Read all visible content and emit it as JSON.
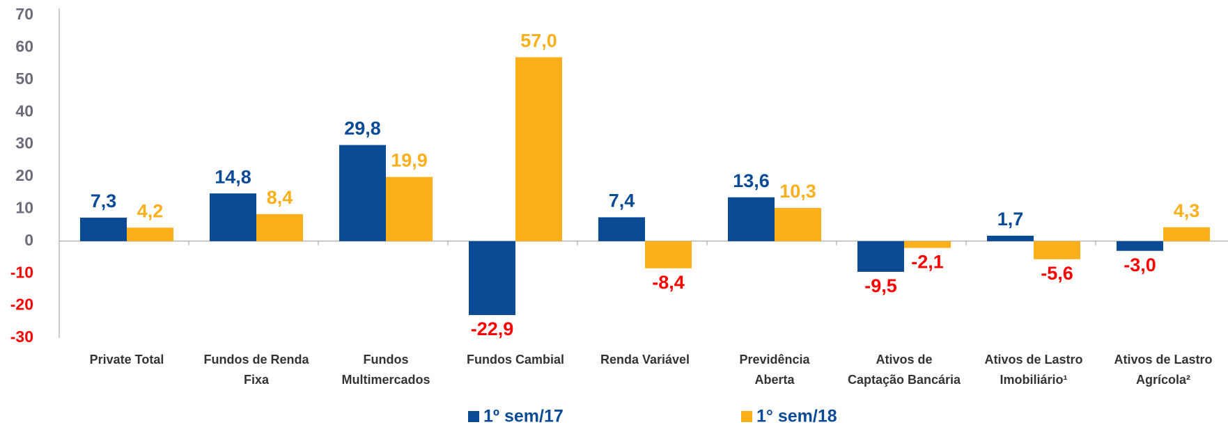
{
  "chart_data": {
    "type": "bar",
    "categories": [
      "Private Total",
      "Fundos de Renda\nFixa",
      "Fundos\nMultimercados",
      "Fundos Cambial",
      "Renda Variável",
      "Previdência\nAberta",
      "Ativos de\nCaptação Bancária",
      "Ativos de Lastro\nImobiliário¹",
      "Ativos de Lastro\nAgrícola²"
    ],
    "series": [
      {
        "name": "1º sem/17",
        "color": "#0b4a94",
        "values": [
          7.3,
          14.8,
          29.8,
          -22.9,
          7.4,
          13.6,
          -9.5,
          1.7,
          -3.0
        ],
        "value_labels": [
          "7,3",
          "14,8",
          "29,8",
          "-22,9",
          "7,4",
          "13,6",
          "-9,5",
          "1,7",
          "-3,0"
        ]
      },
      {
        "name": "1° sem/18",
        "color": "#fbb01b",
        "values": [
          4.2,
          8.4,
          19.9,
          57.0,
          -8.4,
          10.3,
          -2.1,
          -5.6,
          4.3
        ],
        "value_labels": [
          "4,2",
          "8,4",
          "19,9",
          "57,0",
          "-8,4",
          "10,3",
          "-2,1",
          "-5,6",
          "4,3"
        ]
      }
    ],
    "negative_color": "#ff0000",
    "ylim": [
      -30,
      70
    ],
    "yticks": [
      -30,
      -20,
      -10,
      0,
      10,
      20,
      30,
      40,
      50,
      60,
      70
    ],
    "legend": "bottom"
  }
}
